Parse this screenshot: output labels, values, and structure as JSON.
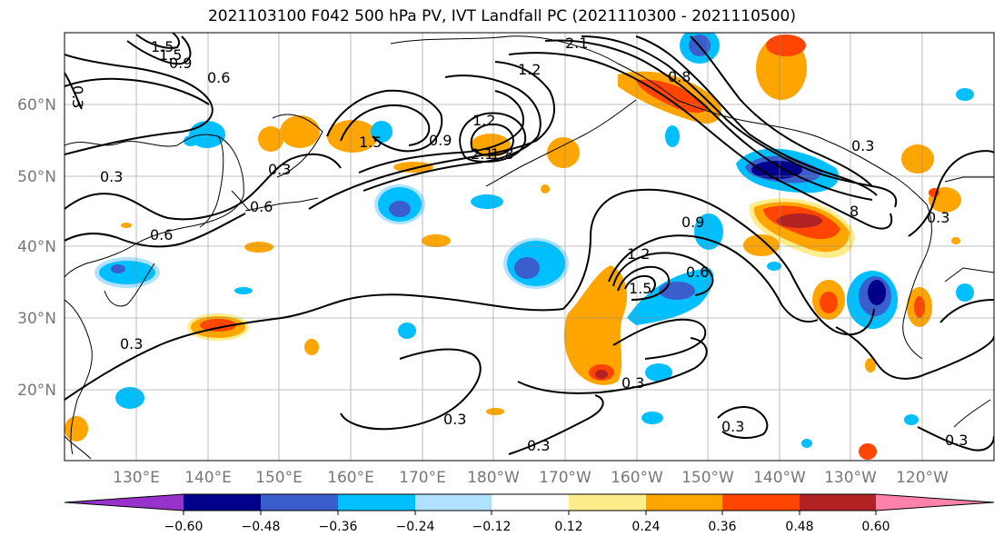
{
  "title": "2021103100 F042 500 hPa PV, IVT Landfall PC (2021110300 - 2021110500)",
  "lat_labels": [
    "60°N",
    "50°N",
    "40°N",
    "30°N",
    "20°N"
  ],
  "lon_labels": [
    "130°E",
    "140°E",
    "150°E",
    "160°E",
    "170°E",
    "180°W",
    "170°W",
    "160°W",
    "150°W",
    "140°W",
    "130°W",
    "120°W"
  ],
  "contour_labels": [
    "1.5",
    "1.5",
    "0.9",
    "0.6",
    "0.3",
    "2.1",
    "1.2",
    "1.8",
    "0.9",
    "1.5",
    "1.2",
    "2.1",
    "8",
    "0.3",
    "0.6",
    "0.6",
    "0.3",
    "0.9",
    "1.2",
    "1.5",
    "0.6",
    "0.8",
    "0.3",
    "0.3",
    "0.3",
    "0.3",
    "0.3",
    "0.3",
    "0.3",
    "0.3"
  ],
  "colorbar": {
    "tick_labels": [
      "−0.60",
      "−0.48",
      "−0.36",
      "−0.24",
      "−0.12",
      "0.12",
      "0.24",
      "0.36",
      "0.48",
      "0.60"
    ],
    "colors": [
      "#9932cc",
      "#00008b",
      "#3a5fcd",
      "#00bfff",
      "#b0e2ff",
      "#ffffff",
      "#ffec8b",
      "#ffa500",
      "#ff4500",
      "#b22222",
      "#ff82ab"
    ]
  },
  "shading_colors": {
    "dark_blue": "#00008b",
    "blue": "#3a5fcd",
    "cyan": "#00bfff",
    "light_blue": "#b0e2ff",
    "yellow": "#ffec8b",
    "orange": "#ffa500",
    "red_orange": "#ff4500",
    "dark_red": "#b22222"
  }
}
